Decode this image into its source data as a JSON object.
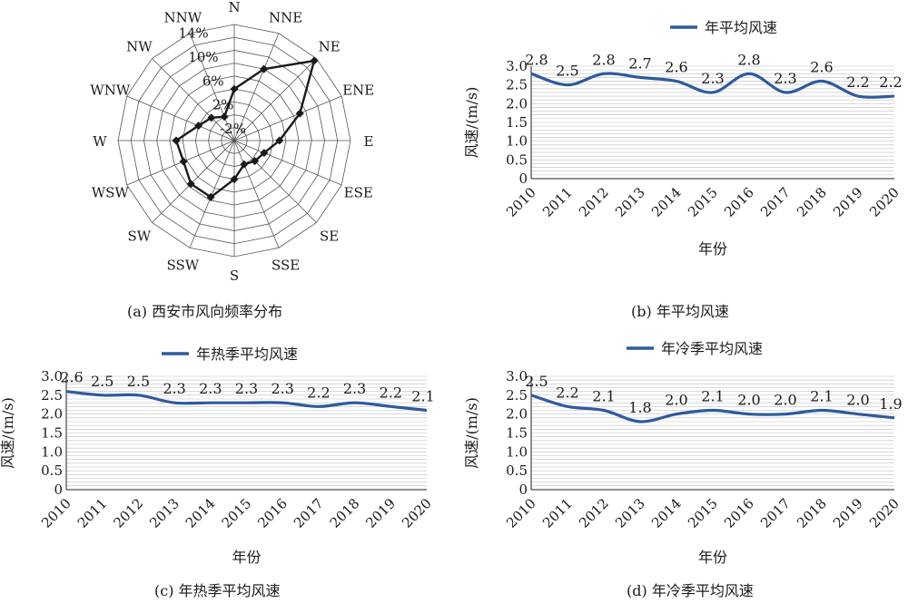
{
  "colors": {
    "line": "#2e5a9e",
    "grid": "#bfbfbf",
    "radar": "#1a1a1a",
    "text": "#1a1a1a"
  },
  "panels": {
    "a": {
      "caption": "(a) 西安市风向频率分布"
    },
    "b": {
      "caption": "(b) 年平均风速"
    },
    "c": {
      "caption": "(c) 年热季平均风速"
    },
    "d": {
      "caption": "(d) 年冷季平均风速"
    }
  },
  "chart_data": [
    {
      "type": "radar",
      "directions": [
        "N",
        "NNE",
        "NE",
        "ENE",
        "E",
        "ESE",
        "SE",
        "SSE",
        "S",
        "SSW",
        "SW",
        "WSW",
        "W",
        "WNW",
        "NW",
        "NNW"
      ],
      "values": [
        4,
        8,
        13.5,
        7,
        3,
        1,
        0.5,
        0,
        2,
        5.5,
        5.5,
        4.5,
        5,
        2,
        1,
        0
      ],
      "radial_ticks": [
        "-2%",
        "2%",
        "6%",
        "10%",
        "14%"
      ],
      "rlim": [
        -4,
        14
      ]
    },
    {
      "type": "line",
      "legend": "年平均风速",
      "categories": [
        "2010",
        "2011",
        "2012",
        "2013",
        "2014",
        "2015",
        "2016",
        "2017",
        "2018",
        "2019",
        "2020"
      ],
      "values": [
        2.8,
        2.5,
        2.8,
        2.7,
        2.6,
        2.3,
        2.8,
        2.3,
        2.6,
        2.2,
        2.2
      ],
      "labels": [
        "2.8",
        "2.5",
        "2.8",
        "2.7",
        "2.6",
        "2.3",
        "2.8",
        "2.3",
        "2.6",
        "2.2",
        "2.2"
      ],
      "xlabel": "年份",
      "ylabel": "风速/(m/s)",
      "ylim": [
        0,
        3.0
      ],
      "yticks": [
        "0",
        "0.5",
        "1.0",
        "1.5",
        "2.0",
        "2.5",
        "3.0"
      ]
    },
    {
      "type": "line",
      "legend": "年热季平均风速",
      "categories": [
        "2010",
        "2011",
        "2012",
        "2013",
        "2014",
        "2015",
        "2016",
        "2017",
        "2018",
        "2019",
        "2020"
      ],
      "values": [
        2.6,
        2.5,
        2.5,
        2.3,
        2.3,
        2.3,
        2.3,
        2.2,
        2.3,
        2.2,
        2.1
      ],
      "labels": [
        "2.6",
        "2.5",
        "2.5",
        "2.3",
        "2.3",
        "2.3",
        "2.3",
        "2.2",
        "2.3",
        "2.2",
        "2.1"
      ],
      "xlabel": "年份",
      "ylabel": "风速/(m/s)",
      "ylim": [
        0,
        3.0
      ],
      "yticks": [
        "0",
        "0.5",
        "1.0",
        "1.5",
        "2.0",
        "2.5",
        "3.0"
      ]
    },
    {
      "type": "line",
      "legend": "年冷季平均风速",
      "categories": [
        "2010",
        "2011",
        "2012",
        "2013",
        "2014",
        "2015",
        "2016",
        "2017",
        "2018",
        "2019",
        "2020"
      ],
      "values": [
        2.5,
        2.2,
        2.1,
        1.8,
        2.0,
        2.1,
        2.0,
        2.0,
        2.1,
        2.0,
        1.9
      ],
      "labels": [
        "2.5",
        "2.2",
        "2.1",
        "1.8",
        "2.0",
        "2.1",
        "2.0",
        "2.0",
        "2.1",
        "2.0",
        "1.9"
      ],
      "xlabel": "年份",
      "ylabel": "风速/(m/s)",
      "ylim": [
        0,
        3.0
      ],
      "yticks": [
        "0",
        "0.5",
        "1.0",
        "1.5",
        "2.0",
        "2.5",
        "3.0"
      ]
    }
  ]
}
